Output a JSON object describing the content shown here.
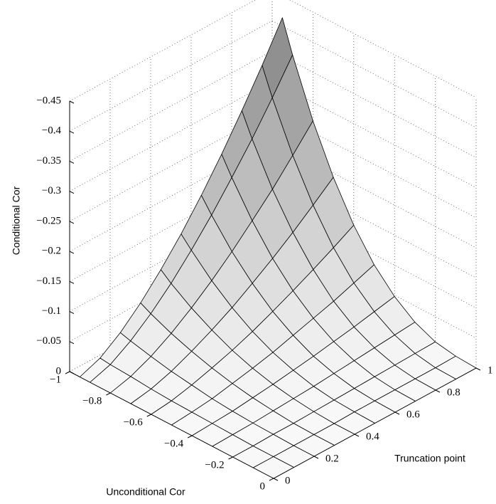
{
  "chart_data": {
    "type": "surface",
    "xlabel": "Unconditional Cor",
    "ylabel": "Truncation point",
    "zlabel": "Conditional Cor",
    "x": [
      -0.95,
      -0.9,
      -0.8,
      -0.7,
      -0.6,
      -0.5,
      -0.4,
      -0.3,
      -0.2,
      -0.1,
      0
    ],
    "y": [
      0,
      0.1,
      0.2,
      0.3,
      0.4,
      0.5,
      0.6,
      0.7,
      0.8,
      0.9,
      1
    ],
    "z": [
      [
        0,
        0,
        0,
        0,
        0,
        0,
        0,
        0,
        0,
        0,
        0
      ],
      [
        -0.013,
        -0.011,
        -0.009,
        -0.006,
        -0.004,
        -0.003,
        -0.002,
        -0.001,
        0,
        0,
        0
      ],
      [
        -0.037,
        -0.032,
        -0.024,
        -0.017,
        -0.012,
        -0.007,
        -0.004,
        -0.002,
        -0.001,
        0,
        0
      ],
      [
        -0.068,
        -0.059,
        -0.044,
        -0.032,
        -0.022,
        -0.014,
        -0.008,
        -0.004,
        -0.001,
        0,
        0
      ],
      [
        -0.105,
        -0.091,
        -0.068,
        -0.049,
        -0.033,
        -0.021,
        -0.012,
        -0.006,
        -0.002,
        0,
        0
      ],
      [
        -0.146,
        -0.128,
        -0.095,
        -0.068,
        -0.046,
        -0.029,
        -0.017,
        -0.008,
        -0.003,
        -0.001,
        0
      ],
      [
        -0.192,
        -0.168,
        -0.125,
        -0.09,
        -0.061,
        -0.039,
        -0.022,
        -0.011,
        -0.004,
        -0.001,
        0
      ],
      [
        -0.242,
        -0.212,
        -0.158,
        -0.113,
        -0.077,
        -0.049,
        -0.028,
        -0.014,
        -0.005,
        -0.001,
        0
      ],
      [
        -0.296,
        -0.258,
        -0.192,
        -0.138,
        -0.094,
        -0.059,
        -0.034,
        -0.017,
        -0.006,
        -0.001,
        0
      ],
      [
        -0.353,
        -0.308,
        -0.23,
        -0.165,
        -0.112,
        -0.071,
        -0.041,
        -0.02,
        -0.007,
        -0.001,
        0
      ],
      [
        -0.414,
        -0.361,
        -0.269,
        -0.193,
        -0.131,
        -0.083,
        -0.048,
        -0.023,
        -0.008,
        -0.002,
        0
      ]
    ],
    "xlim": [
      -1,
      0
    ],
    "ylim": [
      0,
      1
    ],
    "zlim": [
      0,
      -0.45
    ],
    "xticks": [
      {
        "value": -1,
        "label": "−1"
      },
      {
        "value": -0.8,
        "label": "−0.8"
      },
      {
        "value": -0.6,
        "label": "−0.6"
      },
      {
        "value": -0.4,
        "label": "−0.4"
      },
      {
        "value": -0.2,
        "label": "−0.2"
      },
      0
    ],
    "yticks": [
      0,
      0.2,
      0.4,
      0.6,
      0.8,
      1
    ],
    "zticks": [
      0,
      {
        "value": -0.05,
        "label": "−0.05"
      },
      {
        "value": -0.1,
        "label": "−0.1"
      },
      {
        "value": -0.15,
        "label": "−0.15"
      },
      {
        "value": -0.2,
        "label": "−0.2"
      },
      {
        "value": -0.25,
        "label": "−0.25"
      },
      {
        "value": -0.3,
        "label": "−0.3"
      },
      {
        "value": -0.35,
        "label": "−0.35"
      },
      {
        "value": -0.4,
        "label": "−0.4"
      },
      {
        "value": -0.45,
        "label": "−0.45"
      }
    ],
    "grid": true
  }
}
